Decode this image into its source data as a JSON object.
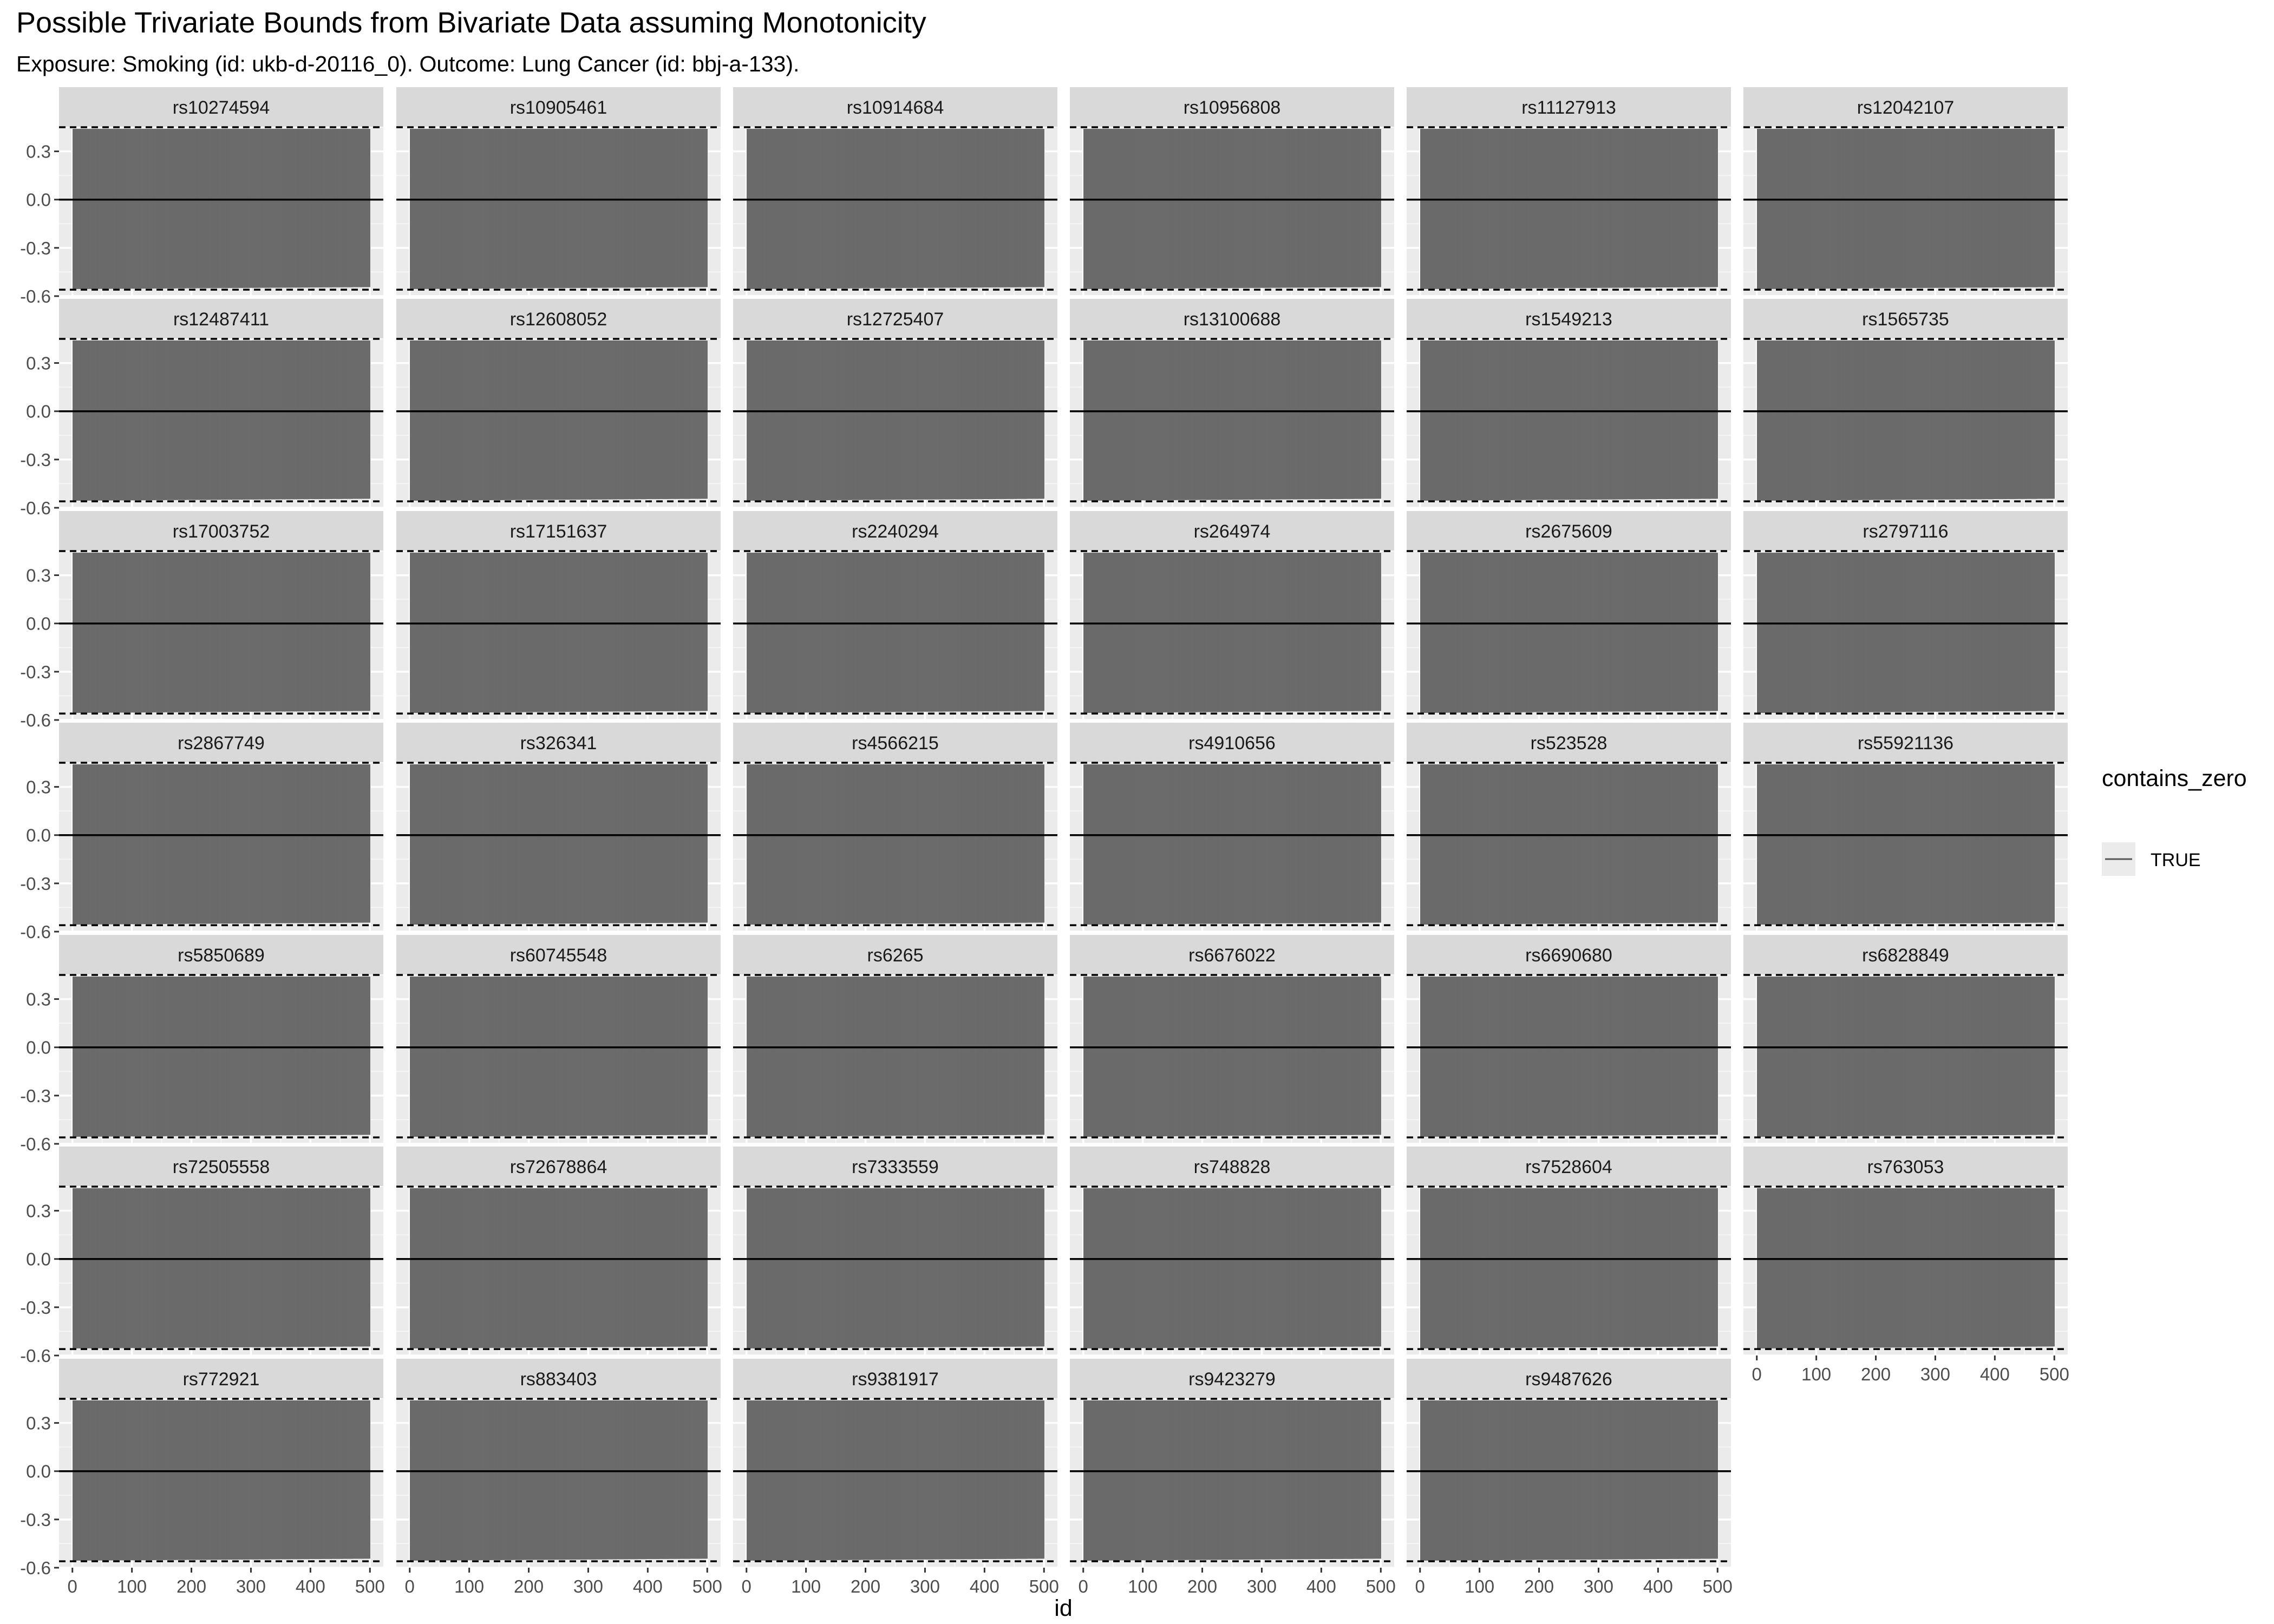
{
  "chart_data": {
    "type": "bar",
    "title": "Possible Trivariate Bounds from Bivariate Data assuming Monotonicity",
    "subtitle": "Exposure: Smoking (id: ukb-d-20116_0). Outcome: Lung Cancer (id: bbj-a-133).",
    "xlabel": "id",
    "ylabel": "",
    "xlim": [
      0,
      500
    ],
    "ylim": [
      -0.6,
      0.45
    ],
    "x_ticks": [
      "0",
      "100",
      "200",
      "300",
      "400",
      "500"
    ],
    "y_ticks": [
      "-0.6",
      "-0.3",
      "0.0",
      "0.3"
    ],
    "x_tick_values": [
      0,
      100,
      200,
      300,
      400,
      500
    ],
    "y_tick_values": [
      -0.6,
      -0.3,
      0.0,
      0.3
    ],
    "grid": true,
    "bar_color": "#6b6b6b",
    "panel_bg": "#ebebeb",
    "strip_bg": "#d9d9d9",
    "n_ids": 500,
    "bounds": {
      "lower": -0.55,
      "upper": 0.44
    },
    "reference_lines": {
      "zero": 0.0,
      "dashed_lower": -0.56,
      "dashed_upper": 0.45
    },
    "legend": {
      "title": "contains_zero",
      "entries": [
        "TRUE"
      ],
      "position": "right"
    },
    "facets": [
      "rs10274594",
      "rs10905461",
      "rs10914684",
      "rs10956808",
      "rs11127913",
      "rs12042107",
      "rs12487411",
      "rs12608052",
      "rs12725407",
      "rs13100688",
      "rs1549213",
      "rs1565735",
      "rs17003752",
      "rs17151637",
      "rs2240294",
      "rs264974",
      "rs2675609",
      "rs2797116",
      "rs2867749",
      "rs326341",
      "rs4566215",
      "rs4910656",
      "rs523528",
      "rs55921136",
      "rs5850689",
      "rs60745548",
      "rs6265",
      "rs6676022",
      "rs6690680",
      "rs6828849",
      "rs72505558",
      "rs72678864",
      "rs7333559",
      "rs748828",
      "rs7528604",
      "rs763053",
      "rs772921",
      "rs883403",
      "rs9381917",
      "rs9423279",
      "rs9487626"
    ]
  }
}
